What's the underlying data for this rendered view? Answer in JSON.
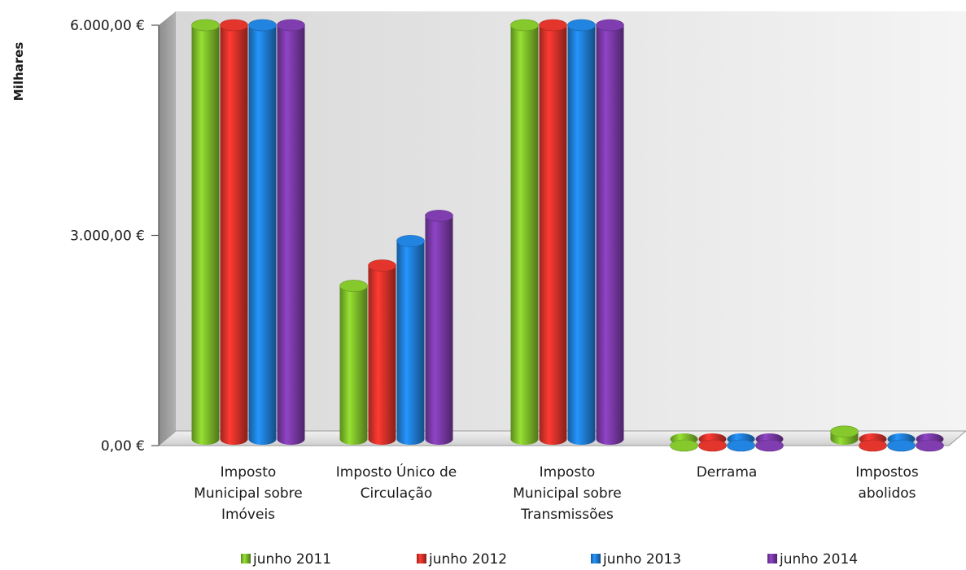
{
  "chart_data": {
    "type": "bar",
    "ylabel": "Milhares",
    "ylim": [
      0,
      6000
    ],
    "yticks": [
      {
        "value": 0,
        "label": "0,00 €"
      },
      {
        "value": 3000,
        "label": "3.000,00 €"
      },
      {
        "value": 6000,
        "label": "6.000,00 €"
      }
    ],
    "categories": [
      [
        "Imposto",
        "Municipal sobre",
        "Imóveis"
      ],
      [
        "Imposto Único de",
        "Circulação"
      ],
      [
        "Imposto",
        "Municipal sobre",
        "Transmissões"
      ],
      [
        "Derrama"
      ],
      [
        "Impostos",
        "abolidos"
      ]
    ],
    "series": [
      {
        "name": "junho 2011",
        "color": "#7fbf2a",
        "values": [
          6000,
          2280,
          6000,
          0,
          200
        ]
      },
      {
        "name": "junho 2012",
        "color": "#d9322a",
        "values": [
          6000,
          2570,
          6000,
          0,
          0
        ]
      },
      {
        "name": "junho 2013",
        "color": "#1f7ed6",
        "values": [
          6000,
          2920,
          6000,
          0,
          0
        ]
      },
      {
        "name": "junho 2014",
        "color": "#7a3aa8",
        "values": [
          6000,
          3280,
          6000,
          0,
          0
        ]
      }
    ],
    "grid": false,
    "legend": "bottom"
  }
}
